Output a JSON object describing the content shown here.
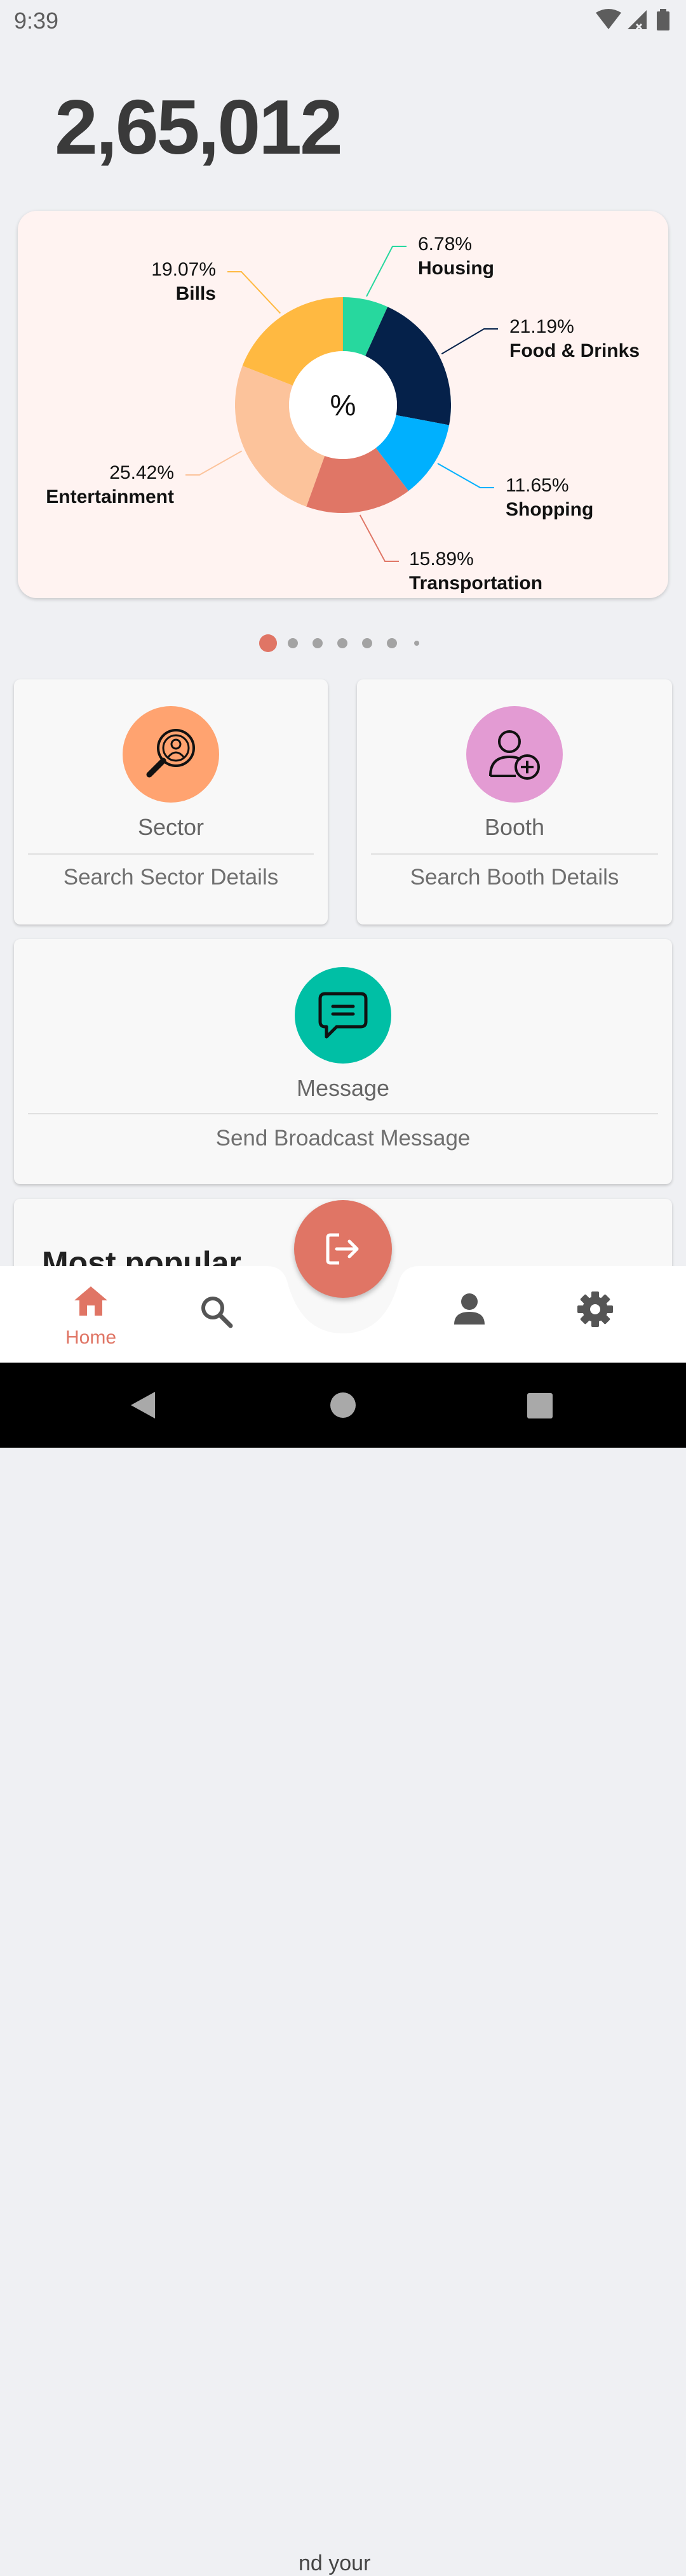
{
  "status_bar": {
    "time": "9:39",
    "icons": [
      "wifi-icon",
      "signal-icon",
      "battery-icon"
    ]
  },
  "summary": {
    "total": "2,65,012"
  },
  "chart_data": {
    "type": "pie",
    "center_label": "%",
    "slices": [
      {
        "label": "Housing",
        "percent_text": "6.78%",
        "value": 6.78,
        "color": "#27d89e"
      },
      {
        "label": "Food & Drinks",
        "percent_text": "21.19%",
        "value": 21.19,
        "color": "#05214a"
      },
      {
        "label": "Shopping",
        "percent_text": "11.65%",
        "value": 11.65,
        "color": "#00b0fe"
      },
      {
        "label": "Transportation",
        "percent_text": "15.89%",
        "value": 15.89,
        "color": "#e07666"
      },
      {
        "label": "Entertainment",
        "percent_text": "25.42%",
        "value": 25.42,
        "color": "#fcc39b"
      },
      {
        "label": "Bills",
        "percent_text": "19.07%",
        "value": 19.07,
        "color": "#ffb941"
      }
    ]
  },
  "pager": {
    "count": 7,
    "active_index": 0,
    "active_color": "#e07565"
  },
  "cards": {
    "sector": {
      "title": "Sector",
      "subtitle": "Search Sector Details",
      "icon": "search-person-icon",
      "color": "#ffa370"
    },
    "booth": {
      "title": "Booth",
      "subtitle": "Search Booth Details",
      "icon": "add-user-icon",
      "color": "#e39bd3"
    },
    "message": {
      "title": "Message",
      "subtitle": "Send Broadcast Message",
      "icon": "chat-icon",
      "color": "#00bfa5"
    }
  },
  "popular": {
    "title": "Most popular",
    "peek_text": "nd your"
  },
  "fab": {
    "icon": "logout-icon",
    "color": "#e07565"
  },
  "bottom_nav": {
    "items": [
      {
        "label": "Home",
        "icon": "home-icon",
        "active": true
      },
      {
        "label": "",
        "icon": "search-icon",
        "active": false
      },
      {
        "label": "",
        "icon": "person-icon",
        "active": false
      },
      {
        "label": "",
        "icon": "settings-icon",
        "active": false
      }
    ]
  }
}
